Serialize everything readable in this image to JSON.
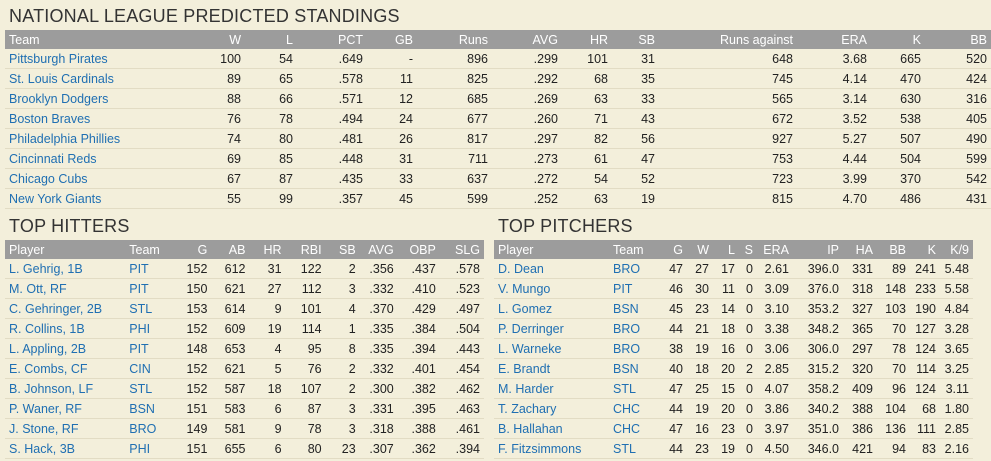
{
  "standings": {
    "title": "NATIONAL LEAGUE PREDICTED STANDINGS",
    "headers": [
      "Team",
      "W",
      "L",
      "PCT",
      "GB",
      "Runs",
      "AVG",
      "HR",
      "SB",
      "Runs against",
      "ERA",
      "K",
      "BB"
    ],
    "rows": [
      [
        "Pittsburgh Pirates",
        "100",
        "54",
        ".649",
        "-",
        "896",
        ".299",
        "101",
        "31",
        "648",
        "3.68",
        "665",
        "520"
      ],
      [
        "St. Louis Cardinals",
        "89",
        "65",
        ".578",
        "11",
        "825",
        ".292",
        "68",
        "35",
        "745",
        "4.14",
        "470",
        "424"
      ],
      [
        "Brooklyn Dodgers",
        "88",
        "66",
        ".571",
        "12",
        "685",
        ".269",
        "63",
        "33",
        "565",
        "3.14",
        "630",
        "316"
      ],
      [
        "Boston Braves",
        "76",
        "78",
        ".494",
        "24",
        "677",
        ".260",
        "71",
        "43",
        "672",
        "3.52",
        "538",
        "405"
      ],
      [
        "Philadelphia Phillies",
        "74",
        "80",
        ".481",
        "26",
        "817",
        ".297",
        "82",
        "56",
        "927",
        "5.27",
        "507",
        "490"
      ],
      [
        "Cincinnati Reds",
        "69",
        "85",
        ".448",
        "31",
        "711",
        ".273",
        "61",
        "47",
        "753",
        "4.44",
        "504",
        "599"
      ],
      [
        "Chicago Cubs",
        "67",
        "87",
        ".435",
        "33",
        "637",
        ".272",
        "54",
        "52",
        "723",
        "3.99",
        "370",
        "542"
      ],
      [
        "New York Giants",
        "55",
        "99",
        ".357",
        "45",
        "599",
        ".252",
        "63",
        "19",
        "815",
        "4.70",
        "486",
        "431"
      ]
    ]
  },
  "hitters": {
    "title": "TOP HITTERS",
    "headers": [
      "Player",
      "Team",
      "G",
      "AB",
      "HR",
      "RBI",
      "SB",
      "AVG",
      "OBP",
      "SLG"
    ],
    "rows": [
      [
        "L. Gehrig, 1B",
        "PIT",
        "152",
        "612",
        "31",
        "122",
        "2",
        ".356",
        ".437",
        ".578"
      ],
      [
        "M. Ott, RF",
        "PIT",
        "150",
        "621",
        "27",
        "112",
        "3",
        ".332",
        ".410",
        ".523"
      ],
      [
        "C. Gehringer, 2B",
        "STL",
        "153",
        "614",
        "9",
        "101",
        "4",
        ".370",
        ".429",
        ".497"
      ],
      [
        "R. Collins, 1B",
        "PHI",
        "152",
        "609",
        "19",
        "114",
        "1",
        ".335",
        ".384",
        ".504"
      ],
      [
        "L. Appling, 2B",
        "PIT",
        "148",
        "653",
        "4",
        "95",
        "8",
        ".335",
        ".394",
        ".443"
      ],
      [
        "E. Combs, CF",
        "CIN",
        "152",
        "621",
        "5",
        "76",
        "2",
        ".332",
        ".401",
        ".454"
      ],
      [
        "B. Johnson, LF",
        "STL",
        "152",
        "587",
        "18",
        "107",
        "2",
        ".300",
        ".382",
        ".462"
      ],
      [
        "P. Waner, RF",
        "BSN",
        "151",
        "583",
        "6",
        "87",
        "3",
        ".331",
        ".395",
        ".463"
      ],
      [
        "J. Stone, RF",
        "BRO",
        "149",
        "581",
        "9",
        "78",
        "3",
        ".318",
        ".388",
        ".461"
      ],
      [
        "S. Hack, 3B",
        "PHI",
        "151",
        "655",
        "6",
        "80",
        "23",
        ".307",
        ".362",
        ".394"
      ]
    ]
  },
  "pitchers": {
    "title": "TOP PITCHERS",
    "headers": [
      "Player",
      "Team",
      "G",
      "W",
      "L",
      "S",
      "ERA",
      "IP",
      "HA",
      "BB",
      "K",
      "K/9"
    ],
    "rows": [
      [
        "D. Dean",
        "BRO",
        "47",
        "27",
        "17",
        "0",
        "2.61",
        "396.0",
        "331",
        "89",
        "241",
        "5.48"
      ],
      [
        "V. Mungo",
        "PIT",
        "46",
        "30",
        "11",
        "0",
        "3.09",
        "376.0",
        "318",
        "148",
        "233",
        "5.58"
      ],
      [
        "L. Gomez",
        "BSN",
        "45",
        "23",
        "14",
        "0",
        "3.10",
        "353.2",
        "327",
        "103",
        "190",
        "4.84"
      ],
      [
        "P. Derringer",
        "BRO",
        "44",
        "21",
        "18",
        "0",
        "3.38",
        "348.2",
        "365",
        "70",
        "127",
        "3.28"
      ],
      [
        "L. Warneke",
        "BRO",
        "38",
        "19",
        "16",
        "0",
        "3.06",
        "306.0",
        "297",
        "78",
        "124",
        "3.65"
      ],
      [
        "E. Brandt",
        "BSN",
        "40",
        "18",
        "20",
        "2",
        "2.85",
        "315.2",
        "320",
        "70",
        "114",
        "3.25"
      ],
      [
        "M. Harder",
        "STL",
        "47",
        "25",
        "15",
        "0",
        "4.07",
        "358.2",
        "409",
        "96",
        "124",
        "3.11"
      ],
      [
        "T. Zachary",
        "CHC",
        "44",
        "19",
        "20",
        "0",
        "3.86",
        "340.2",
        "388",
        "104",
        "68",
        "1.80"
      ],
      [
        "B. Hallahan",
        "CHC",
        "47",
        "16",
        "23",
        "0",
        "3.97",
        "351.0",
        "386",
        "136",
        "111",
        "2.85"
      ],
      [
        "F. Fitzsimmons",
        "STL",
        "44",
        "23",
        "19",
        "0",
        "4.50",
        "346.0",
        "421",
        "94",
        "83",
        "2.16"
      ]
    ]
  }
}
